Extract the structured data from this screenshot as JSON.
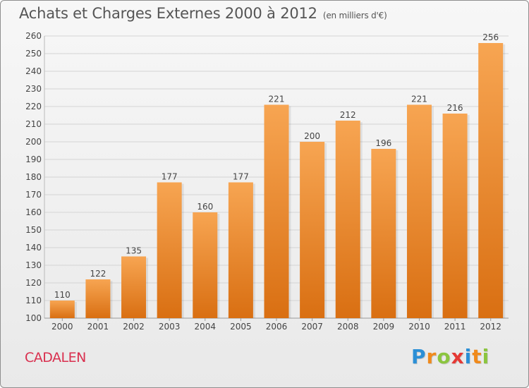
{
  "header": {
    "title": "Achats et Charges Externes 2000 à 2012",
    "subtitle": "(en milliers d'€)"
  },
  "footer": {
    "commune": "CADALEN",
    "logo_text": "Proxiti",
    "logo_letter_colors": [
      "#2b8fd6",
      "#f08a1c",
      "#8bc53f",
      "#e53935",
      "#2b8fd6",
      "#f08a1c",
      "#8bc53f"
    ]
  },
  "chart_data": {
    "type": "bar",
    "categories": [
      "2000",
      "2001",
      "2002",
      "2003",
      "2004",
      "2005",
      "2006",
      "2007",
      "2008",
      "2009",
      "2010",
      "2011",
      "2012"
    ],
    "values": [
      110,
      122,
      135,
      177,
      160,
      177,
      221,
      200,
      212,
      196,
      221,
      216,
      256
    ],
    "title": "Achats et Charges Externes 2000 à 2012",
    "xlabel": "",
    "ylabel": "",
    "ylim": [
      100,
      260
    ],
    "ytick_step": 10,
    "grid": true,
    "bar_color_top": "#f7a552",
    "bar_color_bottom": "#d96f12",
    "show_data_labels": true
  }
}
